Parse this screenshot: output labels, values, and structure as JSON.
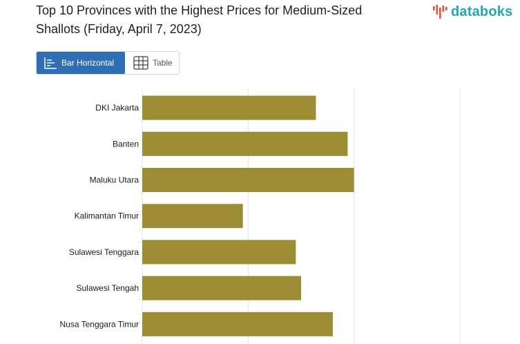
{
  "header": {
    "title": "Top 10 Provinces with the Highest Prices for Medium-Sized Shallots (Friday, April 7, 2023)",
    "brand": "databoks"
  },
  "view_toggle": {
    "bar_label": "Bar Horizontal",
    "table_label": "Table",
    "active": "bar"
  },
  "colors": {
    "bar": "#9c8d34",
    "accent": "#2f6eb5",
    "brand": "#22a6b3",
    "brand_mark": "#e0543a"
  },
  "icons": [
    "bar-chart-icon",
    "table-icon",
    "databoks-logo-icon"
  ],
  "chart_data": {
    "type": "bar",
    "orientation": "horizontal",
    "categories": [
      "DKI Jakarta",
      "Banten",
      "Maluku Utara",
      "Kalimantan Timur",
      "Sulawesi Tenggara",
      "Sulawesi Tengah",
      "Nusa Tenggara Timur"
    ],
    "values": [
      82000,
      97000,
      100000,
      47500,
      72500,
      75000,
      90000
    ],
    "xlim": [
      0,
      150000
    ],
    "grid": true
  }
}
